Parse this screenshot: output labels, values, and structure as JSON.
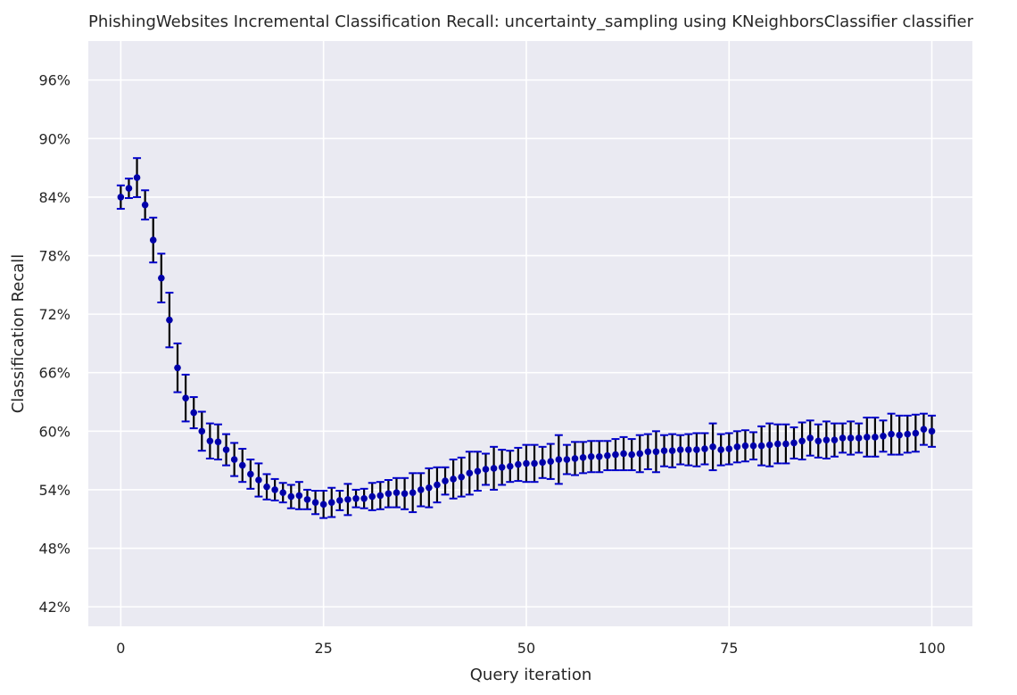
{
  "chart_data": {
    "type": "scatter",
    "title": "PhishingWebsites Incremental Classification Recall: uncertainty_sampling using KNeighborsClassifier classifier",
    "xlabel": "Query iteration",
    "ylabel": "Classification Recall",
    "xlim": [
      -4,
      105
    ],
    "ylim": [
      40,
      100
    ],
    "xticks": [
      0,
      25,
      50,
      75,
      100
    ],
    "xtick_labels": [
      "0",
      "25",
      "50",
      "75",
      "100"
    ],
    "yticks": [
      42,
      48,
      54,
      60,
      66,
      72,
      78,
      84,
      90,
      96
    ],
    "ytick_labels": [
      "42%",
      "48%",
      "54%",
      "60%",
      "66%",
      "72%",
      "78%",
      "84%",
      "90%",
      "96%"
    ],
    "grid": true,
    "background_color": "#eaeaf2",
    "marker_color": "#0000aa",
    "errorbar_color": "#000000",
    "errorcap_color": "#0000cc",
    "series": [
      {
        "x": [
          0,
          1,
          2,
          3,
          4,
          5,
          6,
          7,
          8,
          9,
          10,
          11,
          12,
          13,
          14,
          15,
          16,
          17,
          18,
          19,
          20,
          21,
          22,
          23,
          24,
          25,
          26,
          27,
          28,
          29,
          30,
          31,
          32,
          33,
          34,
          35,
          36,
          37,
          38,
          39,
          40,
          41,
          42,
          43,
          44,
          45,
          46,
          47,
          48,
          49,
          50,
          51,
          52,
          53,
          54,
          55,
          56,
          57,
          58,
          59,
          60,
          61,
          62,
          63,
          64,
          65,
          66,
          67,
          68,
          69,
          70,
          71,
          72,
          73,
          74,
          75,
          76,
          77,
          78,
          79,
          80,
          81,
          82,
          83,
          84,
          85,
          86,
          87,
          88,
          89,
          90,
          91,
          92,
          93,
          94,
          95,
          96,
          97,
          98,
          99,
          100
        ],
        "y": [
          84.0,
          84.9,
          86.0,
          83.2,
          79.6,
          75.7,
          71.4,
          66.5,
          63.4,
          61.9,
          60.0,
          59.0,
          58.9,
          58.1,
          57.1,
          56.5,
          55.6,
          55.0,
          54.3,
          54.0,
          53.7,
          53.3,
          53.4,
          53.0,
          52.7,
          52.5,
          52.7,
          52.9,
          53.0,
          53.1,
          53.1,
          53.3,
          53.4,
          53.6,
          53.7,
          53.6,
          53.7,
          54.0,
          54.2,
          54.5,
          54.9,
          55.1,
          55.3,
          55.7,
          55.9,
          56.1,
          56.2,
          56.3,
          56.4,
          56.6,
          56.7,
          56.7,
          56.8,
          56.9,
          57.1,
          57.1,
          57.2,
          57.3,
          57.4,
          57.4,
          57.5,
          57.6,
          57.7,
          57.6,
          57.7,
          57.9,
          57.9,
          58.0,
          58.0,
          58.1,
          58.1,
          58.1,
          58.2,
          58.4,
          58.1,
          58.2,
          58.4,
          58.5,
          58.5,
          58.5,
          58.6,
          58.7,
          58.7,
          58.8,
          59.0,
          59.3,
          59.0,
          59.1,
          59.1,
          59.3,
          59.3,
          59.3,
          59.4,
          59.4,
          59.5,
          59.7,
          59.6,
          59.7,
          59.8,
          60.2,
          60.0
        ],
        "err": [
          1.2,
          1.0,
          2.0,
          1.5,
          2.3,
          2.5,
          2.8,
          2.5,
          2.4,
          1.6,
          2.0,
          1.8,
          1.8,
          1.6,
          1.7,
          1.7,
          1.5,
          1.7,
          1.3,
          1.1,
          1.0,
          1.2,
          1.4,
          1.0,
          1.2,
          1.4,
          1.5,
          1.0,
          1.6,
          0.9,
          1.0,
          1.4,
          1.4,
          1.4,
          1.5,
          1.6,
          2.0,
          1.7,
          2.0,
          1.8,
          1.4,
          2.0,
          2.0,
          2.2,
          2.0,
          1.6,
          2.2,
          1.8,
          1.6,
          1.7,
          1.9,
          1.9,
          1.6,
          1.8,
          2.5,
          1.5,
          1.7,
          1.6,
          1.6,
          1.6,
          1.5,
          1.6,
          1.7,
          1.6,
          1.9,
          1.8,
          2.1,
          1.6,
          1.7,
          1.5,
          1.6,
          1.7,
          1.6,
          2.4,
          1.6,
          1.6,
          1.6,
          1.6,
          1.4,
          2.0,
          2.2,
          2.0,
          2.0,
          1.6,
          1.9,
          1.8,
          1.7,
          1.9,
          1.7,
          1.5,
          1.7,
          1.5,
          2.0,
          2.0,
          1.6,
          2.1,
          2.0,
          1.9,
          1.9,
          1.6,
          1.6
        ]
      }
    ]
  }
}
